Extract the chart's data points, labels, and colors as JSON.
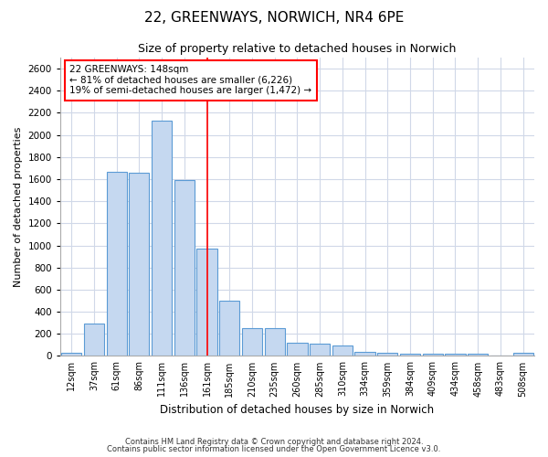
{
  "title": "22, GREENWAYS, NORWICH, NR4 6PE",
  "subtitle": "Size of property relative to detached houses in Norwich",
  "xlabel": "Distribution of detached houses by size in Norwich",
  "ylabel": "Number of detached properties",
  "bar_color": "#c5d8f0",
  "bar_edge_color": "#5b9bd5",
  "background_color": "#ffffff",
  "grid_color": "#d0d8e8",
  "categories": [
    "12sqm",
    "37sqm",
    "61sqm",
    "86sqm",
    "111sqm",
    "136sqm",
    "161sqm",
    "185sqm",
    "210sqm",
    "235sqm",
    "260sqm",
    "285sqm",
    "310sqm",
    "334sqm",
    "359sqm",
    "384sqm",
    "409sqm",
    "434sqm",
    "458sqm",
    "483sqm",
    "508sqm"
  ],
  "values": [
    25,
    295,
    1670,
    1660,
    2130,
    1595,
    975,
    500,
    250,
    250,
    120,
    115,
    95,
    40,
    30,
    20,
    20,
    20,
    20,
    5,
    25
  ],
  "ylim": [
    0,
    2700
  ],
  "yticks": [
    0,
    200,
    400,
    600,
    800,
    1000,
    1200,
    1400,
    1600,
    1800,
    2000,
    2200,
    2400,
    2600
  ],
  "property_label": "22 GREENWAYS: 148sqm",
  "annotation_line1": "← 81% of detached houses are smaller (6,226)",
  "annotation_line2": "19% of semi-detached houses are larger (1,472) →",
  "red_line_x": 6.0,
  "footnote1": "Contains HM Land Registry data © Crown copyright and database right 2024.",
  "footnote2": "Contains public sector information licensed under the Open Government Licence v3.0."
}
